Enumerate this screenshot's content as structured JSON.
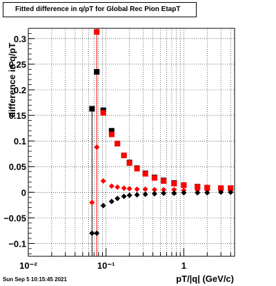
{
  "chart_data": {
    "type": "scatter",
    "title": "Fitted difference in q/pT for Global Rec Pion EtapT",
    "xlabel": "pT/|q| (GeV/c)",
    "ylabel": "difference in q/pT",
    "x_scale": "log",
    "xlim": [
      0.01,
      4.5
    ],
    "ylim": [
      -0.125,
      0.32
    ],
    "grid": true,
    "x_ticks": [
      {
        "value": 0.01,
        "label": "10⁻²"
      },
      {
        "value": 0.1,
        "label": "10⁻¹"
      },
      {
        "value": 1,
        "label": "1"
      }
    ],
    "y_ticks": [
      {
        "value": -0.1,
        "label": "−0.1"
      },
      {
        "value": -0.05,
        "label": "−0.05"
      },
      {
        "value": 0,
        "label": "0"
      },
      {
        "value": 0.05,
        "label": "0.05"
      },
      {
        "value": 0.1,
        "label": "0.1"
      },
      {
        "value": 0.15,
        "label": "0.15"
      },
      {
        "value": 0.2,
        "label": "0.2"
      },
      {
        "value": 0.25,
        "label": "0.25"
      },
      {
        "value": 0.3,
        "label": "0.3"
      }
    ],
    "series": [
      {
        "marker": "square",
        "color": "#000000",
        "x": [
          0.066,
          0.076,
          0.092,
          0.118,
          0.14,
          0.17,
          0.2,
          0.25,
          0.32,
          0.42,
          0.55,
          0.75,
          1.0,
          1.5,
          2.0,
          3.0,
          4.0
        ],
        "y": [
          0.163,
          0.235,
          0.16,
          0.12,
          0.095,
          0.072,
          0.058,
          0.047,
          0.037,
          0.029,
          0.023,
          0.018,
          0.014,
          0.011,
          0.009,
          0.008,
          0.008
        ]
      },
      {
        "marker": "square",
        "color": "#ff0000",
        "x": [
          0.076,
          0.092,
          0.118,
          0.14,
          0.17,
          0.2,
          0.25,
          0.32,
          0.42,
          0.55,
          0.75,
          1.0,
          1.5,
          2.0,
          3.0,
          4.0
        ],
        "y": [
          0.313,
          0.155,
          0.113,
          0.095,
          0.072,
          0.057,
          0.046,
          0.036,
          0.028,
          0.022,
          0.017,
          0.014,
          0.011,
          0.009,
          0.008,
          0.008
        ]
      },
      {
        "marker": "diamond",
        "color": "#ff0000",
        "x": [
          0.066,
          0.076,
          0.092,
          0.118,
          0.14,
          0.17,
          0.2,
          0.25,
          0.32,
          0.42,
          0.55,
          0.75,
          1.0,
          1.5,
          2.0,
          3.0,
          4.0
        ],
        "y": [
          -0.02,
          0.088,
          0.022,
          0.012,
          0.01,
          0.008,
          0.007,
          0.006,
          0.006,
          0.005,
          0.005,
          0.005,
          0.004,
          0.004,
          0.004,
          0.004,
          0.004
        ]
      },
      {
        "marker": "diamond",
        "color": "#000000",
        "x": [
          0.066,
          0.076,
          0.092,
          0.118,
          0.14,
          0.17,
          0.2,
          0.25,
          0.32,
          0.42,
          0.55,
          0.75,
          1.0,
          1.5,
          2.0,
          3.0,
          4.0
        ],
        "y": [
          -0.08,
          -0.08,
          -0.026,
          -0.018,
          -0.012,
          -0.008,
          -0.006,
          -0.005,
          -0.004,
          -0.003,
          -0.002,
          -0.002,
          -0.001,
          -0.001,
          -0.001,
          0.0,
          0.0
        ]
      }
    ],
    "error_bars": [
      {
        "x": 0.066,
        "y_low": -0.125,
        "y_high": 0.163,
        "color": "#000000"
      },
      {
        "x": 0.076,
        "y_low": -0.125,
        "y_high": 0.32,
        "color": "#ff0000"
      }
    ],
    "timestamp": "Sun Sep  5 10:15:45 2021"
  }
}
